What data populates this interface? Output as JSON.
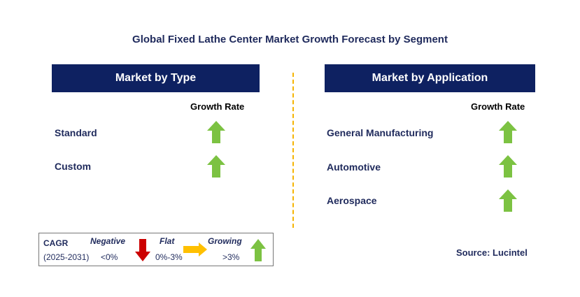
{
  "title": "Global Fixed Lathe Center Market Growth Forecast by Segment",
  "left_panel": {
    "header": "Market by Type",
    "growth_label": "Growth Rate",
    "items": [
      {
        "label": "Standard",
        "trend": "growing"
      },
      {
        "label": "Custom",
        "trend": "growing"
      }
    ]
  },
  "right_panel": {
    "header": "Market by Application",
    "growth_label": "Growth Rate",
    "items": [
      {
        "label": "General Manufacturing",
        "trend": "growing"
      },
      {
        "label": "Automotive",
        "trend": "growing"
      },
      {
        "label": "Aerospace",
        "trend": "growing"
      }
    ]
  },
  "legend": {
    "cagr_label": "CAGR",
    "period": "(2025-2031)",
    "negative_label": "Negative",
    "negative_range": "<0%",
    "flat_label": "Flat",
    "flat_range": "0%-3%",
    "growing_label": "Growing",
    "growing_range": ">3%"
  },
  "source": "Source: Lucintel",
  "colors": {
    "banner": "#0e2161",
    "growing_arrow": "#7cc242",
    "negative_arrow": "#cc0000",
    "flat_arrow": "#ffc000",
    "divider": "#f5b400"
  }
}
